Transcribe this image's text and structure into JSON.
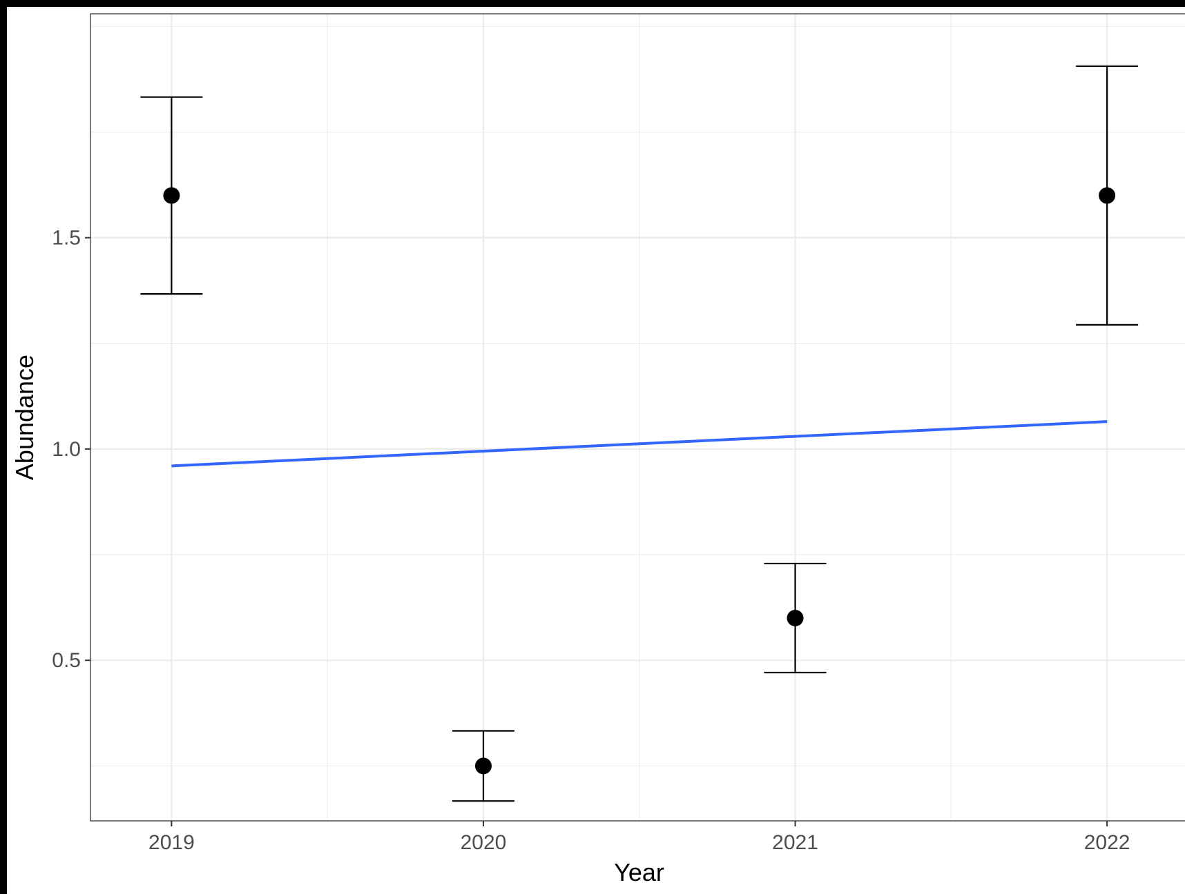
{
  "chart_data": {
    "type": "scatter",
    "title": "",
    "xlabel": "Year",
    "ylabel": "Abundance",
    "x": [
      2019,
      2020,
      2021,
      2022
    ],
    "x_tick_labels": [
      "2019",
      "2020",
      "2021",
      "2022"
    ],
    "y_tick_values": [
      0.5,
      1.0,
      1.5
    ],
    "y_tick_labels": [
      "0.5",
      "1.0",
      "1.5"
    ],
    "xlim": [
      2018.74,
      2022.25
    ],
    "ylim": [
      0.12,
      2.03
    ],
    "grid": true,
    "legend": "none",
    "series": [
      {
        "kind": "points_with_errorbars",
        "color": "#000000",
        "points": [
          {
            "x": 2019,
            "y": 1.6,
            "ymin": 1.367,
            "ymax": 1.833
          },
          {
            "x": 2020,
            "y": 0.25,
            "ymin": 0.167,
            "ymax": 0.333
          },
          {
            "x": 2021,
            "y": 0.6,
            "ymin": 0.471,
            "ymax": 0.729
          },
          {
            "x": 2022,
            "y": 1.6,
            "ymin": 1.294,
            "ymax": 1.906
          }
        ]
      },
      {
        "kind": "trend_line",
        "color": "#3366FF",
        "x": [
          2019,
          2022
        ],
        "y": [
          0.96,
          1.065
        ]
      }
    ]
  }
}
